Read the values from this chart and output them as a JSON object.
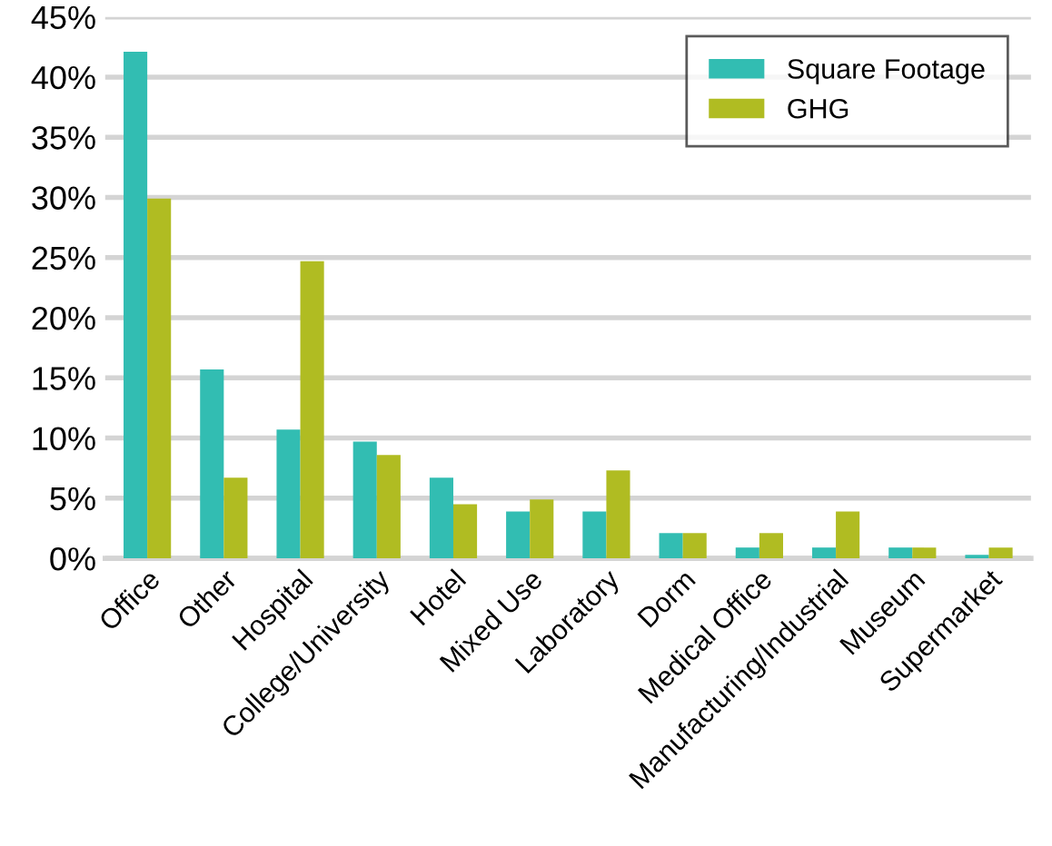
{
  "chart_data": {
    "type": "bar",
    "categories": [
      "Office",
      "Other",
      "Hospital",
      "College/University",
      "Hotel",
      "Mixed Use",
      "Laboratory",
      "Dorm",
      "Medical Office",
      "Manufacturing/Industrial",
      "Museum",
      "Supermarket"
    ],
    "series": [
      {
        "name": "Square Footage",
        "color": "#32bdb2",
        "values": [
          42.1,
          15.7,
          10.7,
          9.7,
          6.7,
          3.9,
          3.9,
          2.1,
          0.9,
          0.9,
          0.9,
          0.3
        ]
      },
      {
        "name": "GHG",
        "color": "#b0bc22",
        "values": [
          29.9,
          6.7,
          24.7,
          8.6,
          4.5,
          4.9,
          7.3,
          2.1,
          2.1,
          3.9,
          0.9,
          0.9
        ]
      }
    ],
    "ylim": [
      0,
      45
    ],
    "yticks": [
      {
        "value": 0,
        "label": "0%"
      },
      {
        "value": 5,
        "label": "5%"
      },
      {
        "value": 10,
        "label": "10%"
      },
      {
        "value": 15,
        "label": "15%"
      },
      {
        "value": 20,
        "label": "20%"
      },
      {
        "value": 25,
        "label": "25%"
      },
      {
        "value": 30,
        "label": "30%"
      },
      {
        "value": 35,
        "label": "35%"
      },
      {
        "value": 40,
        "label": "40%"
      },
      {
        "value": 45,
        "label": "45%"
      }
    ],
    "grid": "y",
    "legend": "top right"
  }
}
